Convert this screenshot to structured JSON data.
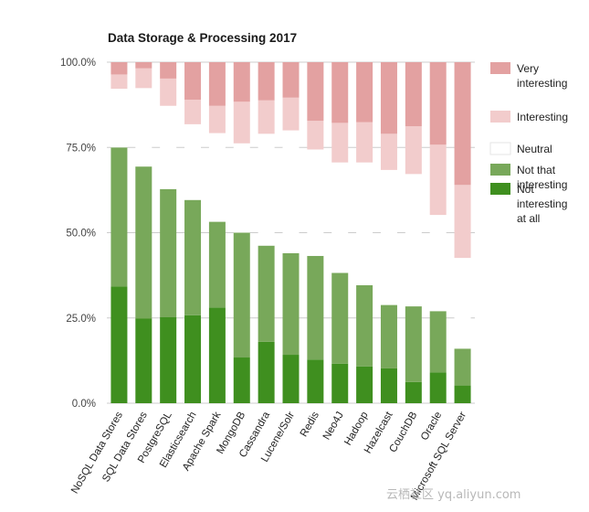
{
  "chart_data": {
    "type": "bar",
    "stacked": true,
    "title": "Data Storage & Processing 2017",
    "xlabel": "",
    "ylabel": "",
    "ylim": [
      0,
      100
    ],
    "ytick_values": [
      0,
      25,
      50,
      75,
      100
    ],
    "ytick_labels": [
      "0.0%",
      "25.0%",
      "50.0%",
      "75.0%",
      "100.0%"
    ],
    "grid": true,
    "legend_position": "right",
    "categories": [
      "NoSQL Data Stores",
      "SQL Data Stores",
      "PostgreSQL",
      "Elasticsearch",
      "Apache Spark",
      "MongoDB",
      "Cassandra",
      "Lucene/Solr",
      "Redis",
      "Neo4J",
      "Hadoop",
      "Hazelcast",
      "CouchDB",
      "Oracle",
      "Microsoft SQL Server"
    ],
    "series": [
      {
        "name": "Very interesting",
        "color": "#3f8f1f",
        "values": [
          34.2,
          24.8,
          25.2,
          25.8,
          28.0,
          13.4,
          18.0,
          14.2,
          12.8,
          11.6,
          10.8,
          10.2,
          6.2,
          9.0,
          5.2
        ]
      },
      {
        "name": "Interesting",
        "color": "#78a85a",
        "values": [
          40.8,
          44.6,
          37.6,
          33.8,
          25.2,
          36.6,
          28.2,
          29.8,
          30.4,
          26.6,
          23.8,
          18.6,
          22.2,
          18.0,
          10.8
        ]
      },
      {
        "name": "Neutral",
        "color": "#ffffff",
        "values": [
          17.2,
          23.0,
          24.4,
          22.2,
          26.0,
          26.2,
          32.8,
          36.0,
          31.2,
          32.4,
          36.0,
          39.6,
          38.8,
          28.2,
          26.6
        ]
      },
      {
        "name": "Not that interesting",
        "color": "#f2cccc",
        "values": [
          4.2,
          5.8,
          8.0,
          7.2,
          8.0,
          12.2,
          9.8,
          9.6,
          8.4,
          11.6,
          11.8,
          10.6,
          14.0,
          20.6,
          21.4
        ]
      },
      {
        "name": "Not interesting at all",
        "color": "#e3a1a1",
        "values": [
          3.6,
          1.8,
          4.8,
          11.0,
          12.8,
          11.6,
          11.2,
          10.4,
          17.2,
          17.8,
          17.6,
          21.0,
          18.8,
          24.2,
          36.0
        ]
      }
    ],
    "legend_lines": [
      [
        "Not",
        "interesting",
        "at all"
      ],
      [
        "Not that",
        "interesting"
      ],
      [
        "Neutral"
      ],
      [
        "Interesting"
      ],
      [
        "Very",
        "interesting"
      ]
    ]
  },
  "watermark": "云栖社区 yq.aliyun.com"
}
